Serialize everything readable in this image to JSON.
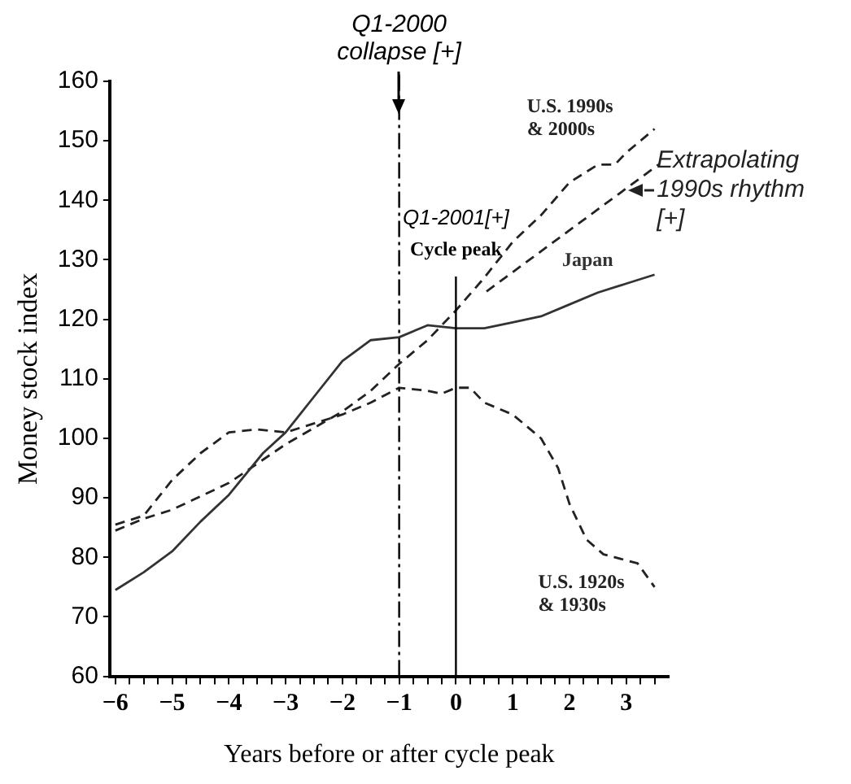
{
  "chart_data": {
    "type": "line",
    "xlabel": "Years before or after cycle peak",
    "ylabel": "Money stock index",
    "xlim": [
      -6.1,
      3.75
    ],
    "ylim": [
      60,
      160
    ],
    "xticks": [
      {
        "value": -6,
        "label": "−6"
      },
      {
        "value": -5.75,
        "label": null
      },
      {
        "value": -5.5,
        "label": null
      },
      {
        "value": -5.25,
        "label": null
      },
      {
        "value": -5,
        "label": "−5"
      },
      {
        "value": -4.75,
        "label": null
      },
      {
        "value": -4.5,
        "label": null
      },
      {
        "value": -4.25,
        "label": null
      },
      {
        "value": -4,
        "label": "−4"
      },
      {
        "value": -3.75,
        "label": null
      },
      {
        "value": -3.5,
        "label": null
      },
      {
        "value": -3.25,
        "label": null
      },
      {
        "value": -3,
        "label": "−3"
      },
      {
        "value": -2.75,
        "label": null
      },
      {
        "value": -2.5,
        "label": null
      },
      {
        "value": -2.25,
        "label": null
      },
      {
        "value": -2,
        "label": "−2"
      },
      {
        "value": -1.75,
        "label": null
      },
      {
        "value": -1.5,
        "label": null
      },
      {
        "value": -1.25,
        "label": null
      },
      {
        "value": -1,
        "label": "−1"
      },
      {
        "value": -0.75,
        "label": null
      },
      {
        "value": -0.5,
        "label": null
      },
      {
        "value": -0.25,
        "label": null
      },
      0,
      {
        "value": 0.25,
        "label": null
      },
      {
        "value": 0.5,
        "label": null
      },
      {
        "value": 0.75,
        "label": null
      },
      1,
      {
        "value": 1.25,
        "label": null
      },
      {
        "value": 1.5,
        "label": null
      },
      {
        "value": 1.75,
        "label": null
      },
      2,
      {
        "value": 2.25,
        "label": null
      },
      {
        "value": 2.5,
        "label": null
      },
      {
        "value": 2.75,
        "label": null
      },
      3,
      {
        "value": 3.25,
        "label": null
      },
      {
        "value": 3.5,
        "label": null
      }
    ],
    "yticks": [
      60,
      70,
      80,
      90,
      100,
      110,
      120,
      130,
      140,
      150,
      160
    ],
    "grid": false,
    "series": [
      {
        "name": "Japan",
        "color": "#333333",
        "line_style": "solid",
        "x": [
          -6,
          -5.5,
          -5,
          -4.5,
          -4,
          -3.4,
          -3,
          -2.5,
          -2,
          -1.5,
          -1,
          -0.5,
          0,
          0.5,
          1,
          1.5,
          2,
          2.5,
          3,
          3.5
        ],
        "values": [
          74.5,
          77.5,
          81,
          86,
          90.5,
          97.5,
          101,
          107,
          113,
          116.5,
          117,
          119,
          118.5,
          118.5,
          119.5,
          120.5,
          122.5,
          124.5,
          126,
          127.5
        ]
      },
      {
        "name": "U.S. 1990s & 2000s",
        "color": "#222222",
        "line_style": "dashed",
        "x": [
          -6,
          -5.5,
          -5,
          -4,
          -3,
          -2,
          -1.5,
          -1,
          -0.5,
          0,
          0.5,
          1,
          1.5,
          2,
          2.5,
          2.8,
          3,
          3.5
        ],
        "values": [
          84.5,
          86.5,
          88,
          92.5,
          99,
          104.5,
          108,
          112.5,
          116.5,
          121.5,
          127,
          133,
          137.5,
          143,
          146,
          146,
          148,
          152
        ]
      },
      {
        "name": "U.S. 1920s & 1930s",
        "color": "#222222",
        "line_style": "dashed",
        "x": [
          -6,
          -5.5,
          -5,
          -4.5,
          -4,
          -3.5,
          -3,
          -2.5,
          -2,
          -1.5,
          -1,
          -0.5,
          -0.25,
          0,
          0.25,
          0.5,
          1,
          1.5,
          1.8,
          2,
          2.3,
          2.6,
          3,
          3.2,
          3.5
        ],
        "values": [
          85.5,
          87,
          93,
          97.5,
          101,
          101.5,
          101,
          102.5,
          104,
          106,
          108.5,
          108,
          107.5,
          108.5,
          108.5,
          106,
          104,
          100,
          95,
          89,
          83,
          80.5,
          79.5,
          79,
          75
        ]
      },
      {
        "name": "Extrapolating 1990s rhythm [+]",
        "color": "#222222",
        "line_style": "dashed",
        "x": [
          0.54,
          3.57
        ],
        "values": [
          124.7,
          146
        ]
      }
    ],
    "ref_lines": [
      {
        "axis": "x",
        "value": -1,
        "label": "Q1-2000 collapse [+]",
        "line_style": "dashed"
      },
      {
        "axis": "x",
        "value": 0,
        "label": "Q1-2001[+]",
        "line_style": "solid"
      }
    ],
    "annotations": [
      "Cycle peak"
    ]
  }
}
